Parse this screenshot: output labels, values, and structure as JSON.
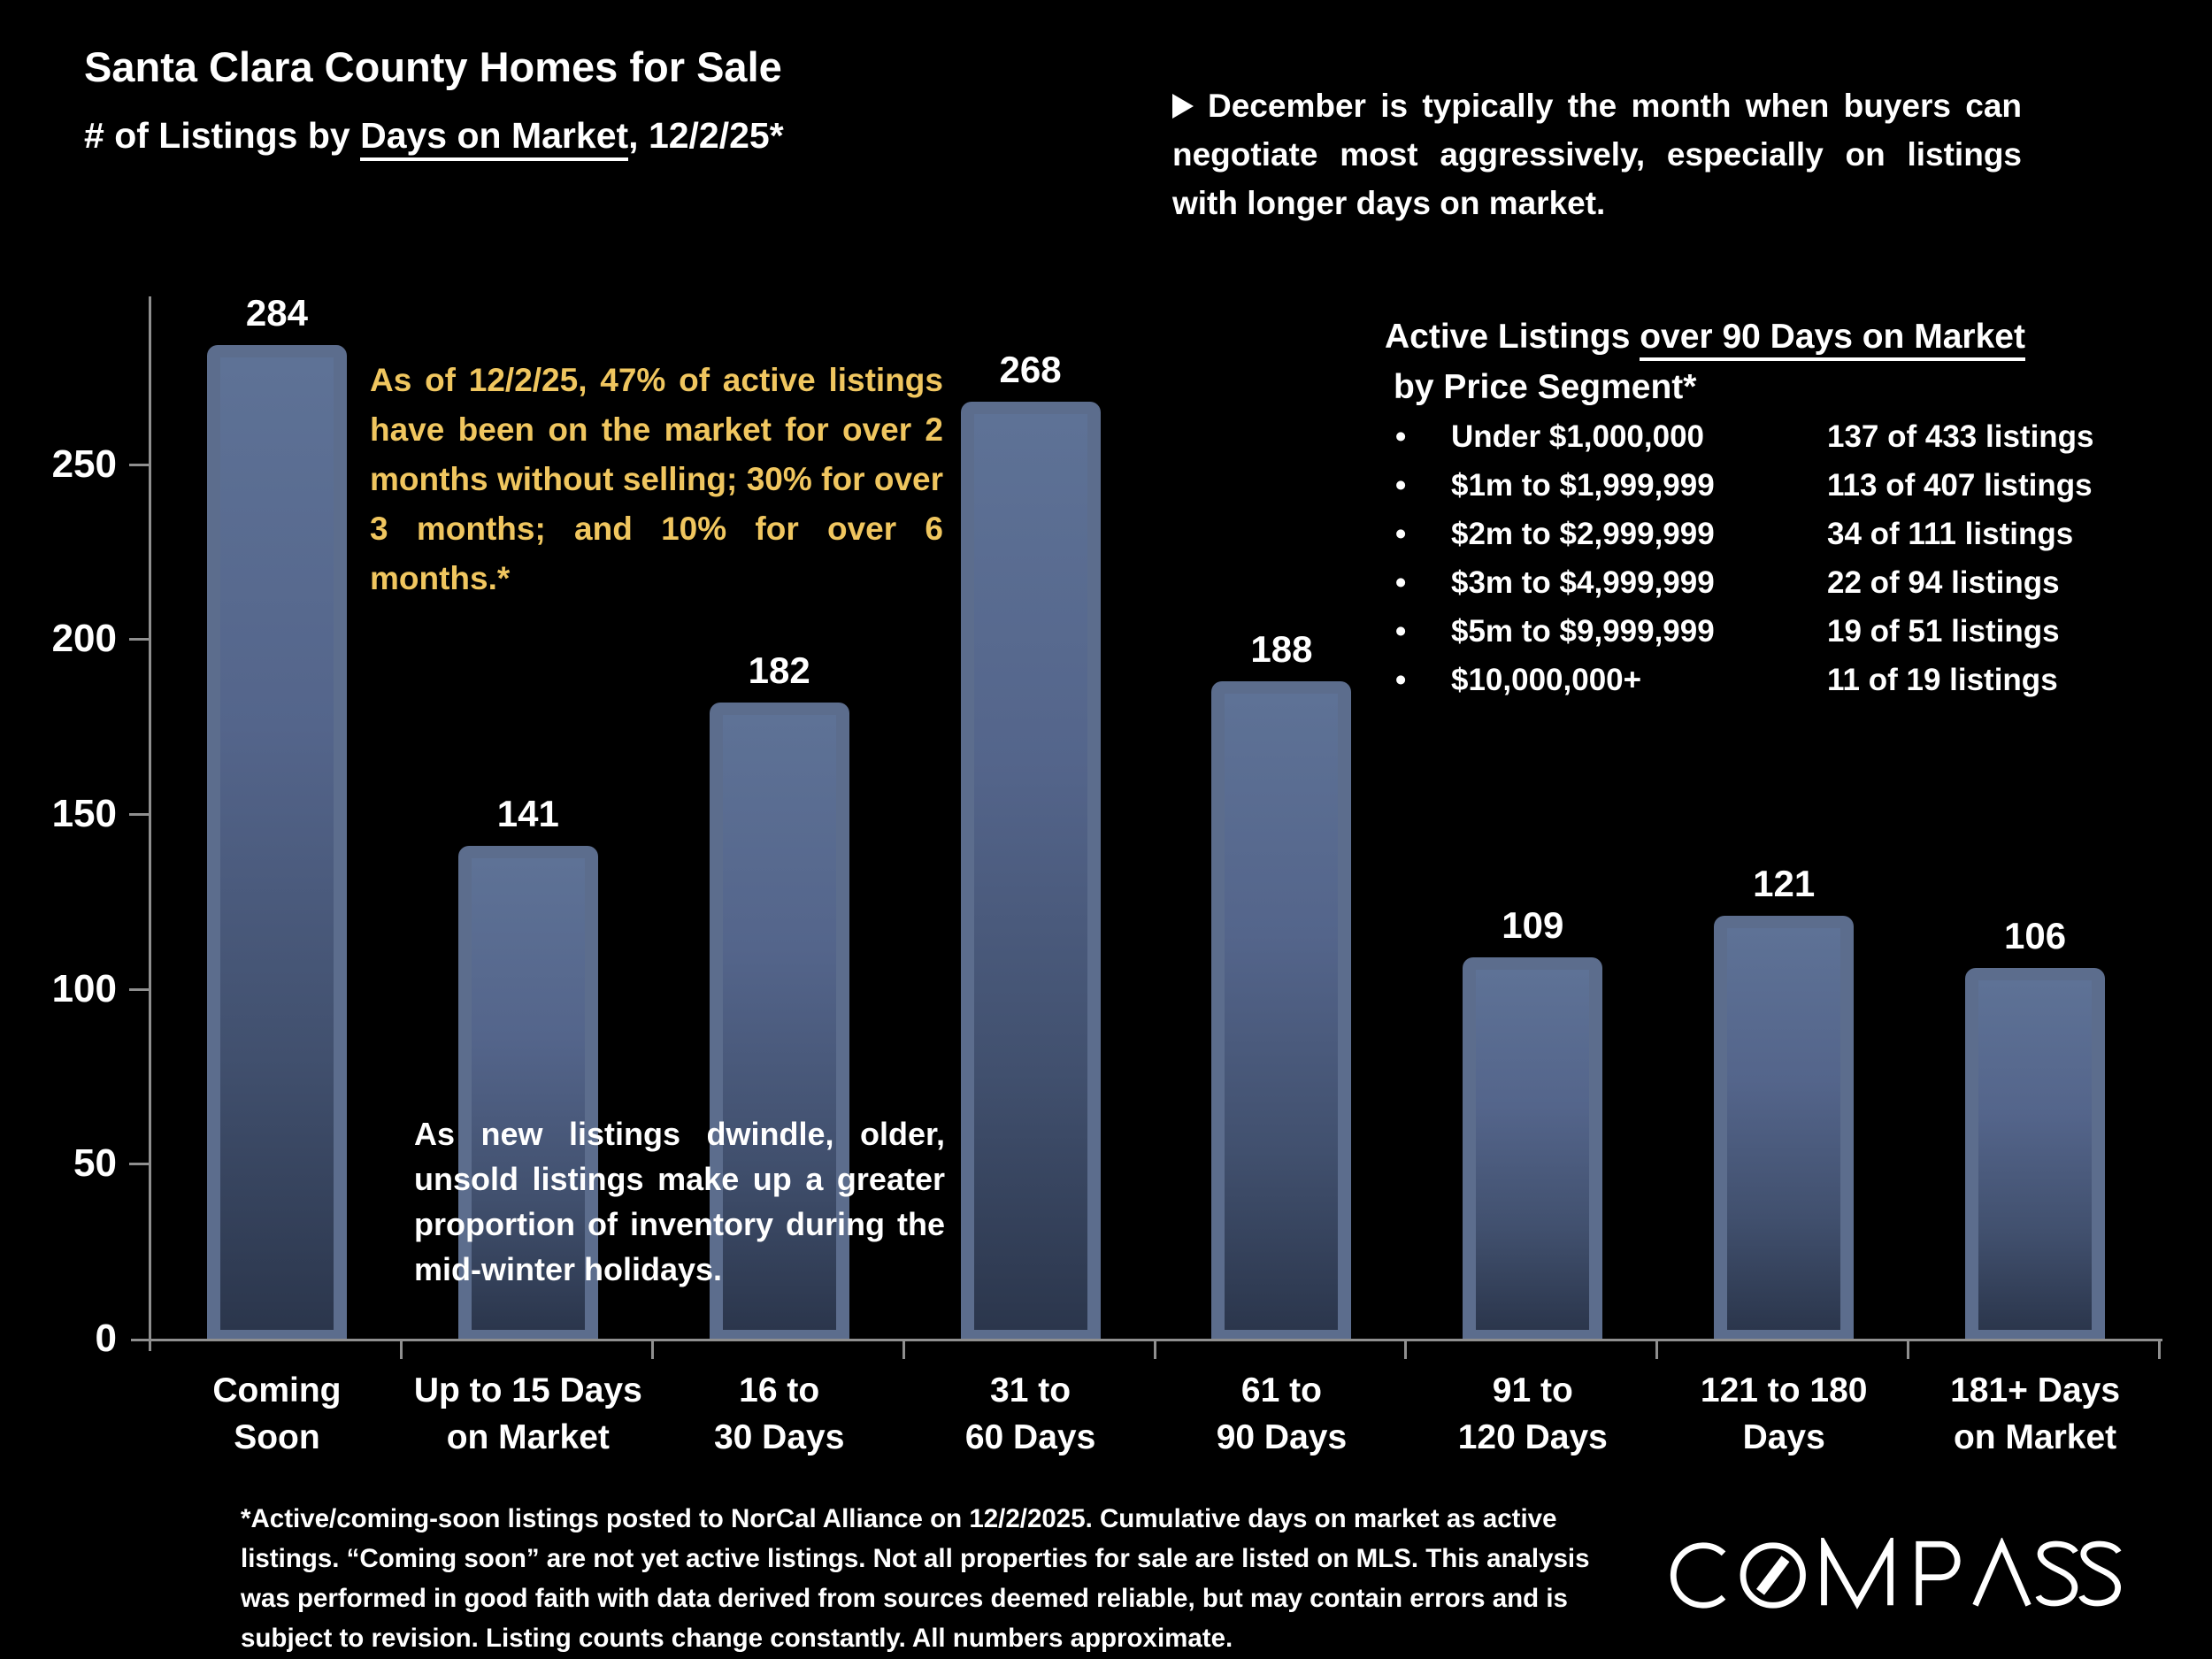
{
  "header": {
    "title": "Santa Clara County Homes for Sale",
    "subtitle_prefix": "# of Listings by ",
    "subtitle_underlined": "Days on Market",
    "subtitle_suffix": ", 12/2/25*"
  },
  "callout_top_right": "December is typically the month when buyers can negotiate most aggressively, especially on listings with longer days on market.",
  "annotation_yellow": "As of 12/2/25, 47% of active listings have been on the market for over 2 months without selling; 30% for over 3 months; and 10% for over 6 months.*",
  "annotation_white": "As new listings dwindle, older, unsold listings make up a greater proportion of inventory during the mid-winter holidays.",
  "price_panel": {
    "heading_prefix": "Active Listings ",
    "heading_underlined": "over 90 Days on Market",
    "heading_line2": "by Price Segment*",
    "rows": [
      {
        "segment": "Under $1,000,000",
        "count": "137 of 433 listings"
      },
      {
        "segment": "$1m to $1,999,999",
        "count": "113 of 407 listings"
      },
      {
        "segment": "$2m to $2,999,999",
        "count": "34 of 111 listings"
      },
      {
        "segment": "$3m to $4,999,999",
        "count": "22 of 94 listings"
      },
      {
        "segment": "$5m to $9,999,999",
        "count": "19 of 51 listings"
      },
      {
        "segment": "$10,000,000+",
        "count": "11 of 19 listings"
      }
    ]
  },
  "chart_data": {
    "type": "bar",
    "title": "Santa Clara County Homes for Sale",
    "subtitle": "# of Listings by Days on Market, 12/2/25*",
    "categories": [
      "Coming\nSoon",
      "Up to 15 Days\non  Market",
      "16 to\n30 Days",
      "31 to\n60 Days",
      "61 to\n90 Days",
      "91 to\n120 Days",
      "121 to 180\nDays",
      "181+ Days\non Market"
    ],
    "values": [
      284,
      141,
      182,
      268,
      188,
      109,
      121,
      106
    ],
    "xlabel": "",
    "ylabel": "# of Listings",
    "yticks": [
      0,
      50,
      100,
      150,
      200,
      250
    ],
    "ylim": [
      0,
      298
    ],
    "grid": false,
    "legend": "none",
    "bar_frame_color": "#5c6d8d",
    "bar_fill_top": "#5e7296",
    "bar_fill_bottom": "#2b364c",
    "axis_color": "#8f8f8f",
    "label_color": "#ffffff"
  },
  "footnote": "*Active/coming-soon listings posted to NorCal Alliance on 12/2/2025. Cumulative days on market as active listings. “Coming soon” are not yet active listings. Not all properties for sale are listed on MLS. This analysis was performed in good faith with data derived from sources deemed reliable, but may contain errors and is subject to revision. Listing counts change constantly. All numbers approximate.",
  "logo_text": "COMPASS"
}
